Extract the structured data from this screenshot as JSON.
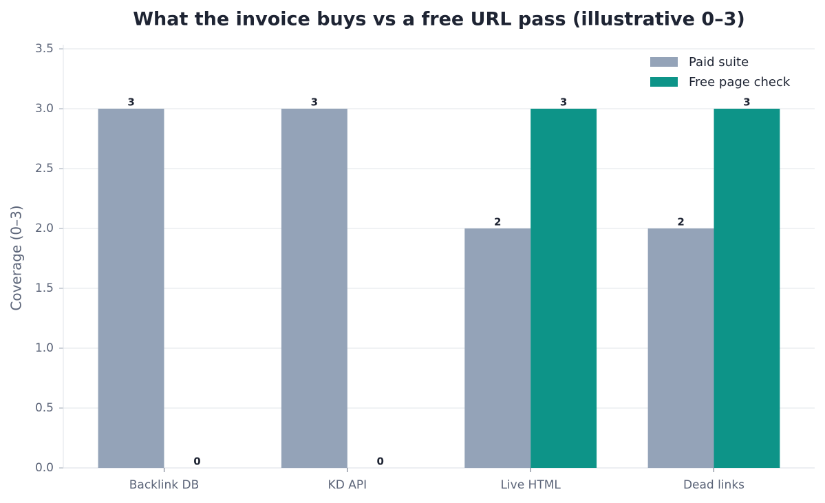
{
  "chart_data": {
    "type": "bar",
    "title": "What the invoice buys vs a free URL pass (illustrative 0–3)",
    "y_label": "Coverage (0–3)",
    "categories": [
      "Backlink DB",
      "KD API",
      "Live HTML",
      "Dead links"
    ],
    "series": [
      {
        "name": "Paid suite",
        "color": "#94a3b8",
        "values": [
          3,
          3,
          2,
          2
        ]
      },
      {
        "name": "Free page check",
        "color": "#0d9488",
        "values": [
          0,
          0,
          3,
          3
        ]
      }
    ],
    "ylim": [
      0,
      3.5
    ],
    "yticks": [
      {
        "value": 0,
        "label": "0.0"
      },
      {
        "value": 0.5,
        "label": "0.5"
      },
      {
        "value": 1,
        "label": "1.0"
      },
      {
        "value": 1.5,
        "label": "1.5"
      },
      {
        "value": 2,
        "label": "2.0"
      },
      {
        "value": 2.5,
        "label": "2.5"
      },
      {
        "value": 3,
        "label": "3.0"
      },
      {
        "value": 3.5,
        "label": "3.5"
      }
    ],
    "grid": true,
    "legend": "upper right"
  }
}
